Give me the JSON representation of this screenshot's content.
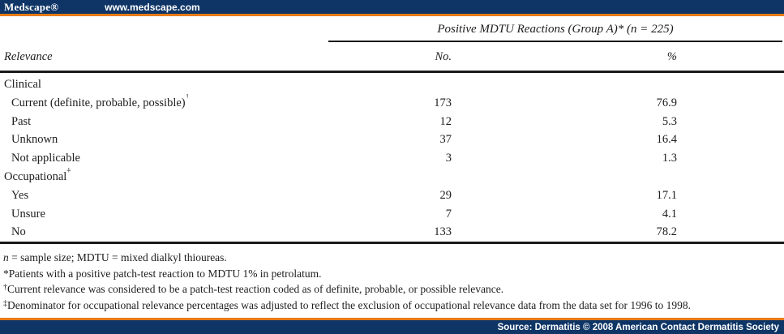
{
  "top_bar": {
    "logo": "Medscape®",
    "url": "www.medscape.com"
  },
  "colors": {
    "navy": "#0e3566",
    "orange": "#e87b17",
    "text": "#1d1d1d"
  },
  "table": {
    "group_header": "Positive MDTU Reactions (Group A)* (n = 225)",
    "columns": [
      "Relevance",
      "No.",
      "%"
    ],
    "sections": [
      {
        "label": "Clinical",
        "label_sup": "",
        "rows": [
          {
            "label": "Current (definite, probable, possible)",
            "sup": "†",
            "no": "173",
            "pct": "76.9"
          },
          {
            "label": "Past",
            "sup": "",
            "no": "12",
            "pct": "5.3"
          },
          {
            "label": "Unknown",
            "sup": "",
            "no": "37",
            "pct": "16.4"
          },
          {
            "label": "Not applicable",
            "sup": "",
            "no": "3",
            "pct": "1.3"
          }
        ]
      },
      {
        "label": "Occupational",
        "label_sup": "‡",
        "rows": [
          {
            "label": "Yes",
            "sup": "",
            "no": "29",
            "pct": "17.1"
          },
          {
            "label": "Unsure",
            "sup": "",
            "no": "7",
            "pct": "4.1"
          },
          {
            "label": "No",
            "sup": "",
            "no": "133",
            "pct": "78.2"
          }
        ]
      }
    ]
  },
  "footnotes": [
    {
      "lead": "n",
      "rest": " = sample size; MDTU = mixed dialkyl thioureas."
    },
    {
      "lead": "*",
      "rest": "Patients with a positive patch-test reaction to MDTU 1% in petrolatum."
    },
    {
      "lead": "†",
      "rest": "Current relevance was considered to be a patch-test reaction coded as of definite, probable, or possible relevance."
    },
    {
      "lead": "‡",
      "rest": "Denominator for occupational relevance percentages was adjusted to reflect the exclusion of occupational relevance data from the data set for 1996 to 1998."
    }
  ],
  "bottom_bar": {
    "source": "Source: Dermatitis © 2008 American Contact Dermatitis Society"
  }
}
